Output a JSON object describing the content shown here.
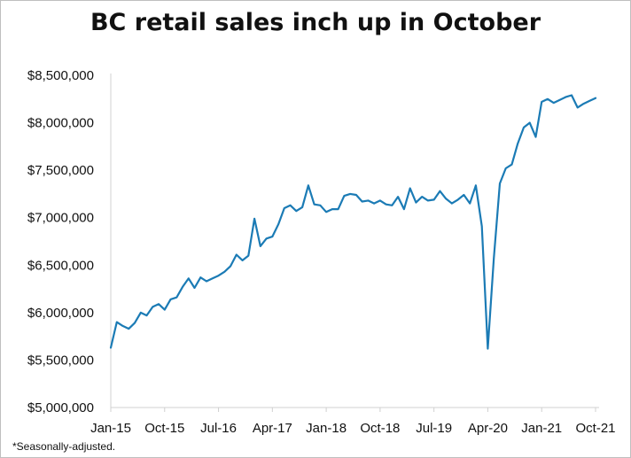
{
  "title": "BC retail sales inch up in October",
  "footnote": "*Seasonally-adjusted.",
  "chart_data": {
    "type": "line",
    "title": "BC retail sales inch up in October",
    "xlabel": "",
    "ylabel": "",
    "x_start": "Jan-15",
    "x_end": "Oct-21",
    "x_tick_labels": [
      "Jan-15",
      "Oct-15",
      "Jul-16",
      "Apr-17",
      "Jan-18",
      "Oct-18",
      "Jul-19",
      "Apr-20",
      "Jan-21",
      "Oct-21"
    ],
    "y_tick_labels": [
      "$5,000,000",
      "$5,500,000",
      "$6,000,000",
      "$6,500,000",
      "$7,000,000",
      "$7,500,000",
      "$8,000,000",
      "$8,500,000"
    ],
    "ylim": [
      5000000,
      8500000
    ],
    "grid": false,
    "line_color": "#1b7bb5",
    "series": [
      {
        "values": [
          5630000,
          5900000,
          5860000,
          5830000,
          5890000,
          6000000,
          5970000,
          6060000,
          6090000,
          6030000,
          6140000,
          6160000,
          6270000,
          6360000,
          6260000,
          6370000,
          6330000,
          6360000,
          6390000,
          6430000,
          6490000,
          6610000,
          6550000,
          6600000,
          6990000,
          6700000,
          6780000,
          6800000,
          6930000,
          7100000,
          7130000,
          7070000,
          7110000,
          7340000,
          7140000,
          7130000,
          7060000,
          7090000,
          7090000,
          7230000,
          7250000,
          7240000,
          7170000,
          7180000,
          7150000,
          7180000,
          7140000,
          7130000,
          7220000,
          7090000,
          7310000,
          7160000,
          7220000,
          7180000,
          7190000,
          7280000,
          7200000,
          7150000,
          7190000,
          7240000,
          7150000,
          7340000,
          6910000,
          5620000,
          6570000,
          7360000,
          7520000,
          7560000,
          7780000,
          7950000,
          8000000,
          7850000,
          8220000,
          8250000,
          8210000,
          8240000,
          8270000,
          8290000,
          8160000,
          8200000,
          8230000,
          8260000
        ]
      }
    ]
  }
}
